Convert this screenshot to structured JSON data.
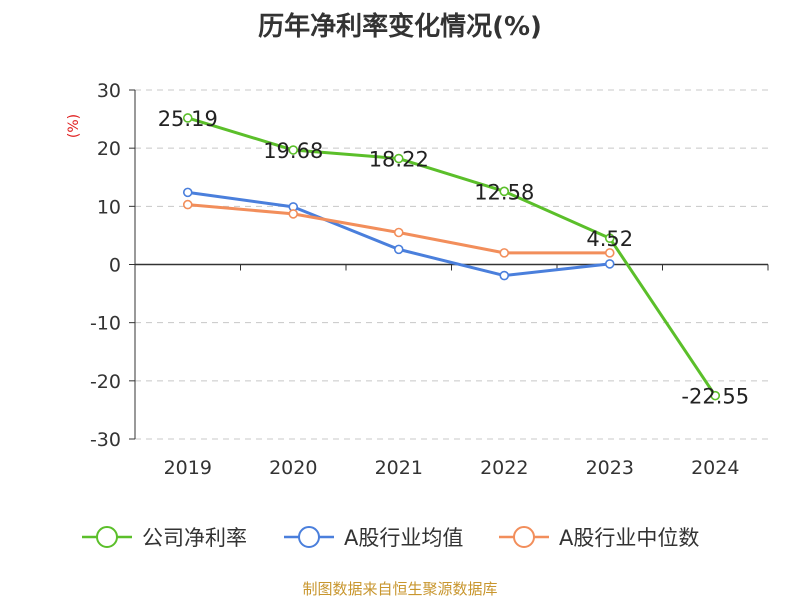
{
  "chart_data": {
    "type": "line",
    "title": "历年净利率变化情况(%)",
    "ylabel": "(%)",
    "xlabel": "",
    "categories": [
      "2019",
      "2020",
      "2021",
      "2022",
      "2023",
      "2024"
    ],
    "y_ticks": [
      "30",
      "20",
      "10",
      "0",
      "-10",
      "-20",
      "-30"
    ],
    "ylim": [
      -30,
      30
    ],
    "grid": true,
    "legend_position": "bottom",
    "series": [
      {
        "name": "公司净利率",
        "color": "#5bbf2a",
        "values": [
          25.19,
          19.68,
          18.22,
          12.58,
          4.52,
          -22.55
        ],
        "labels": [
          "25.19",
          "19.68",
          "18.22",
          "12.58",
          "4.52",
          "-22.55"
        ]
      },
      {
        "name": "A股行业均值",
        "color": "#4a7fdc",
        "values": [
          12.4,
          9.9,
          2.6,
          -1.9,
          0.1,
          null
        ]
      },
      {
        "name": "A股行业中位数",
        "color": "#f28e5b",
        "values": [
          10.3,
          8.7,
          5.5,
          2.0,
          2.0,
          null
        ]
      }
    ]
  },
  "source_note": "制图数据来自恒生聚源数据库"
}
